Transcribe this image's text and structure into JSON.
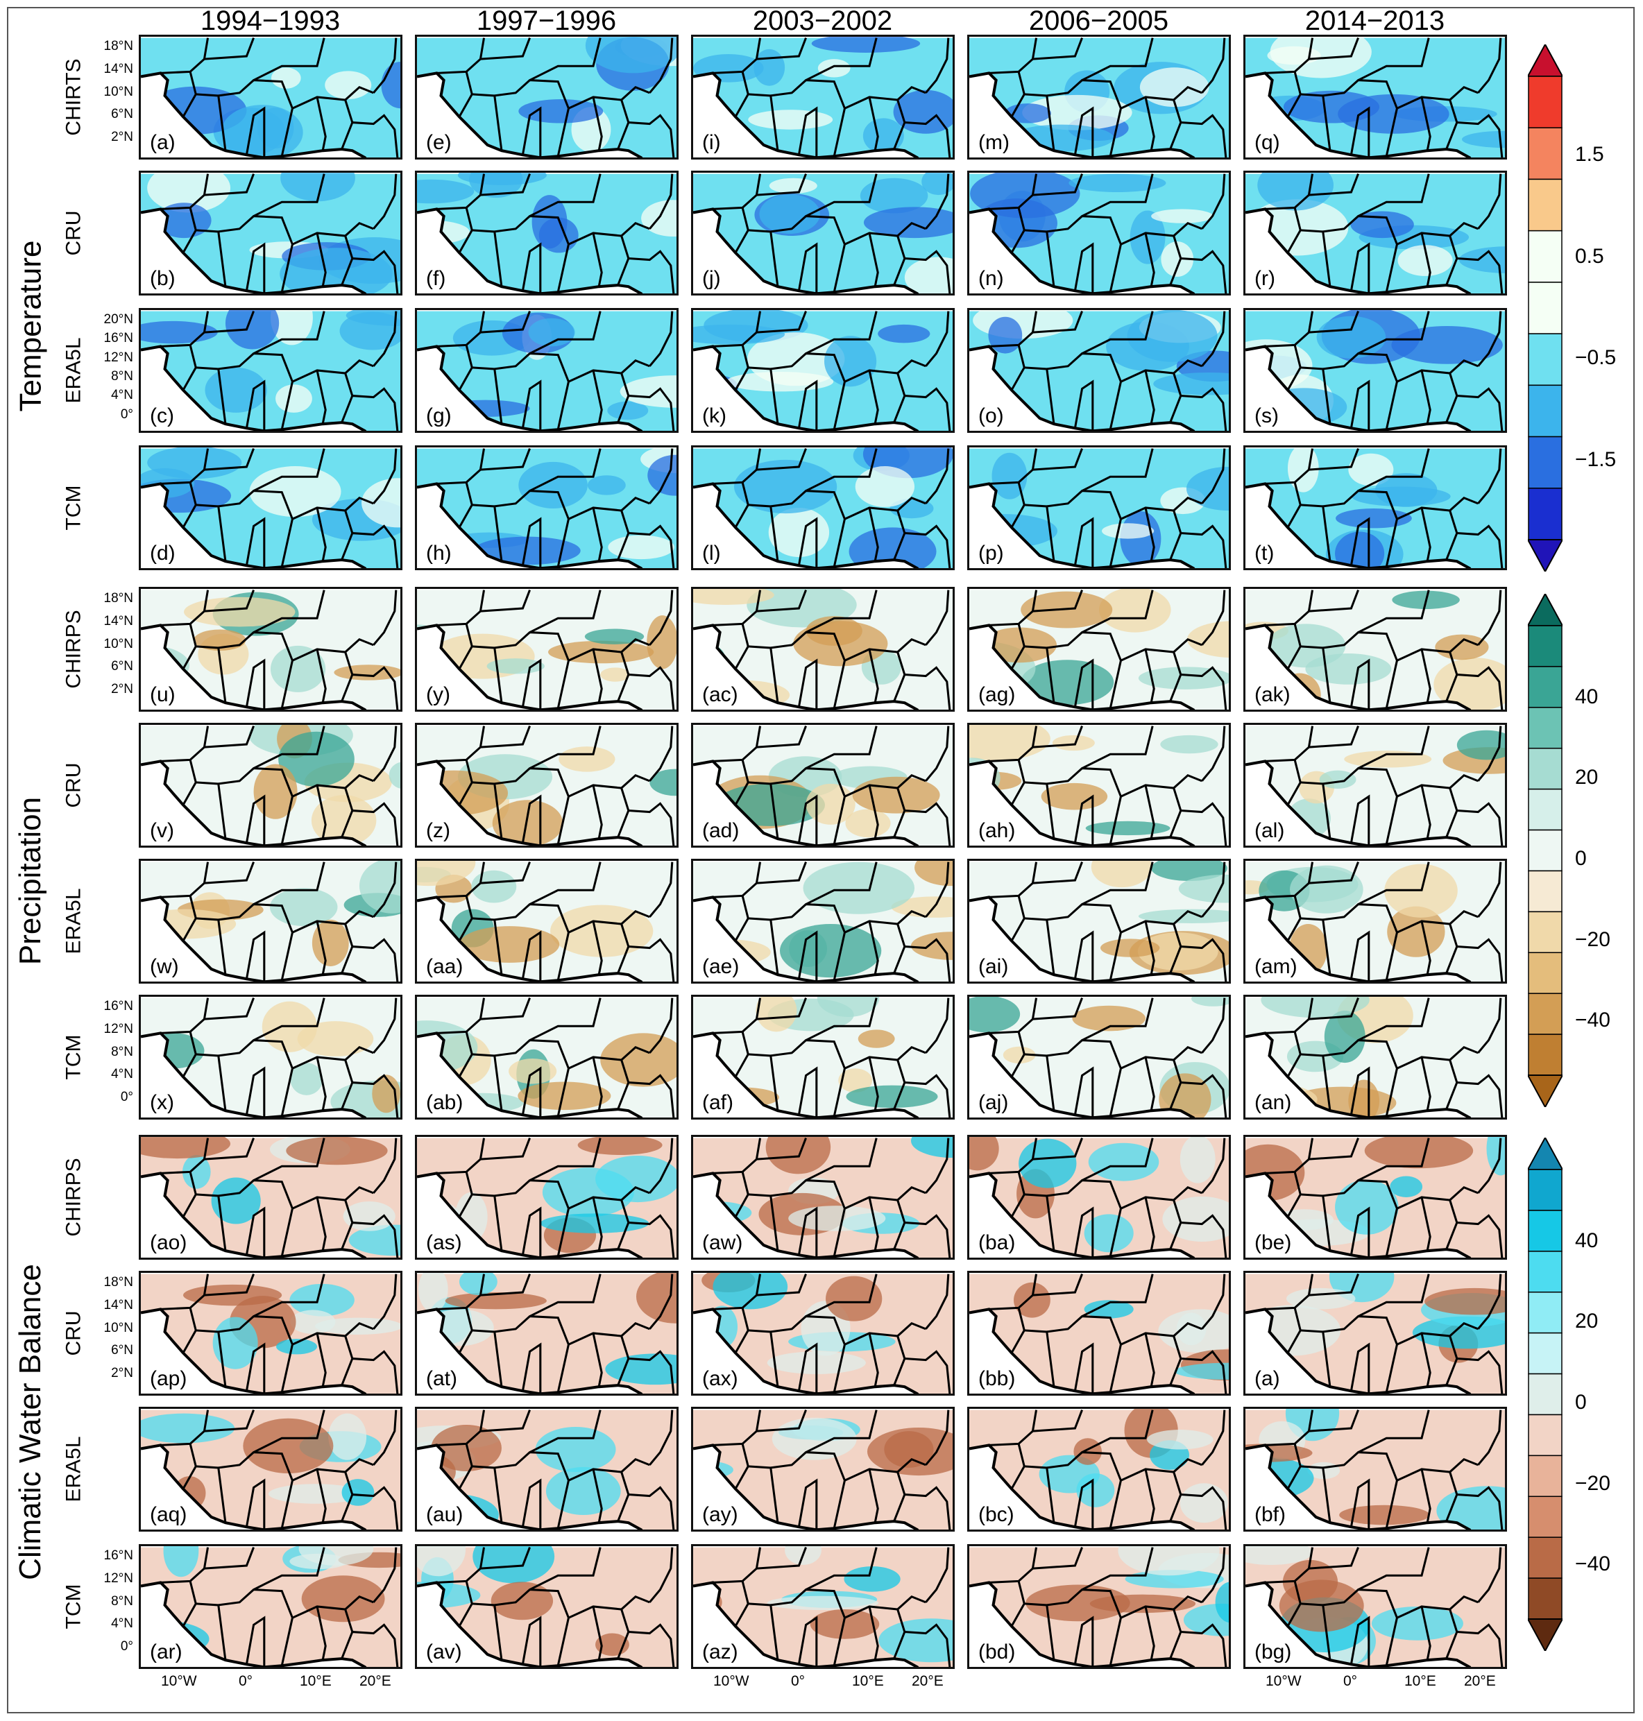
{
  "columns": [
    "1994−1993",
    "1997−1996",
    "2003−2002",
    "2006−2005",
    "2014−2013"
  ],
  "groups": [
    {
      "name": "Temperature",
      "rows": [
        "CHIRTS",
        "CRU",
        "ERA5L",
        "TCM"
      ]
    },
    {
      "name": "Precipitation",
      "rows": [
        "CHIRPS",
        "CRU",
        "ERA5L",
        "TCM"
      ]
    },
    {
      "name": "Climatic  Water  Balance",
      "rows": [
        "CHIRPS",
        "CRU",
        "ERA5L",
        "TCM"
      ]
    }
  ],
  "panel_tags": [
    [
      "(a)",
      "(e)",
      "(i)",
      "(m)",
      "(q)"
    ],
    [
      "(b)",
      "(f)",
      "(j)",
      "(n)",
      "(r)"
    ],
    [
      "(c)",
      "(g)",
      "(k)",
      "(o)",
      "(s)"
    ],
    [
      "(d)",
      "(h)",
      "(l)",
      "(p)",
      "(t)"
    ],
    [
      "(u)",
      "(y)",
      "(ac)",
      "(ag)",
      "(ak)"
    ],
    [
      "(v)",
      "(z)",
      "(ad)",
      "(ah)",
      "(al)"
    ],
    [
      "(w)",
      "(aa)",
      "(ae)",
      "(ai)",
      "(am)"
    ],
    [
      "(x)",
      "(ab)",
      "(af)",
      "(aj)",
      "(an)"
    ],
    [
      "(ao)",
      "(as)",
      "(aw)",
      "(ba)",
      "(be)"
    ],
    [
      "(ap)",
      "(at)",
      "(ax)",
      "(bb)",
      "(a)"
    ],
    [
      "(aq)",
      "(au)",
      "(ay)",
      "(bc)",
      "(bf)"
    ],
    [
      "(ar)",
      "(av)",
      "(az)",
      "(bd)",
      "(bg)"
    ]
  ],
  "lat_labels": {
    "row0": [
      "18°N",
      "14°N",
      "10°N",
      "6°N",
      "2°N"
    ],
    "row2": [
      "20°N",
      "16°N",
      "12°N",
      "8°N",
      "4°N",
      "0°"
    ],
    "row4": [
      "18°N",
      "14°N",
      "10°N",
      "6°N",
      "2°N"
    ],
    "row7": [
      "16°N",
      "12°N",
      "8°N",
      "4°N",
      "0°"
    ],
    "row9": [
      "18°N",
      "14°N",
      "10°N",
      "6°N",
      "2°N"
    ],
    "row11": [
      "16°N",
      "12°N",
      "8°N",
      "4°N",
      "0°"
    ]
  },
  "lon_labels": [
    "10°W",
    "0°",
    "10°E",
    "20°E"
  ],
  "colorbars": [
    {
      "name": "temperature",
      "ticks": [
        "1.5",
        "0.5",
        "−0.5",
        "−1.5"
      ],
      "colors": [
        "#c8102e",
        "#ef3b2c",
        "#f4845f",
        "#f9c98b",
        "#f5fff5",
        "#f5fff5",
        "#6fe0f0",
        "#3cb4ec",
        "#2a6fe0",
        "#1a2fd0",
        "#2014b8"
      ]
    },
    {
      "name": "precipitation",
      "ticks": [
        "40",
        "20",
        "0",
        "−20",
        "−40"
      ],
      "colors": [
        "#0b6b5e",
        "#1b8a7a",
        "#3aa595",
        "#6cc3b4",
        "#a6dcd2",
        "#d6efea",
        "#eef7f3",
        "#f6ead4",
        "#f0d9aa",
        "#e4bd7c",
        "#d39e55",
        "#bf7f32",
        "#a8651a"
      ]
    },
    {
      "name": "climatic_water_balance",
      "ticks": [
        "40",
        "20",
        "0",
        "−20",
        "−40"
      ],
      "colors": [
        "#1486b0",
        "#10a7cf",
        "#16c8e6",
        "#4ddcf0",
        "#90ecf5",
        "#c7f3f6",
        "#dfeeea",
        "#f2d4c6",
        "#e8b39a",
        "#d68e6e",
        "#b96b47",
        "#8f4a26",
        "#5e2a10"
      ]
    }
  ],
  "palettes": {
    "temperature": {
      "bg": "#6fe0f0",
      "alt": [
        "#3cb4ec",
        "#f5fff5",
        "#2a6fe0"
      ]
    },
    "precipitation": {
      "bg": "#eef7f3",
      "alt": [
        "#f0d9aa",
        "#a6dcd2",
        "#d39e55",
        "#3aa595"
      ]
    },
    "climatic_water_balance": {
      "bg": "#f2d4c6",
      "alt": [
        "#4ddcf0",
        "#dfeeea",
        "#b96b47",
        "#16c8e6"
      ]
    }
  }
}
